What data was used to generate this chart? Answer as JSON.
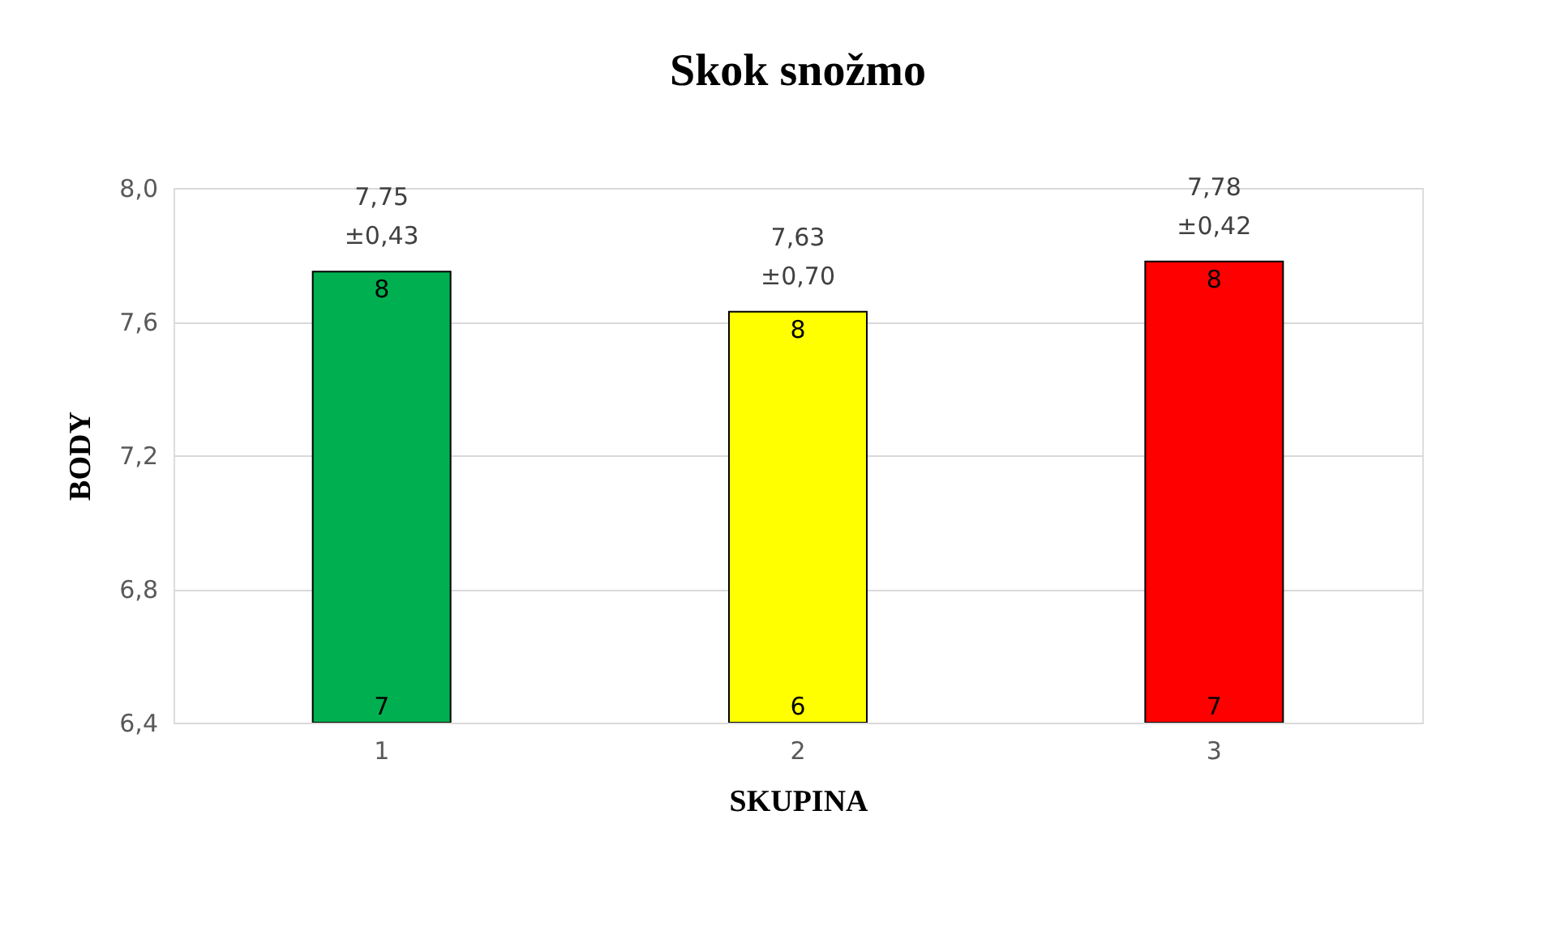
{
  "chart_data": {
    "type": "bar",
    "title": "Skok snožmo",
    "xlabel": "SKUPINA",
    "ylabel": "BODY",
    "categories": [
      "1",
      "2",
      "3"
    ],
    "values": [
      7.75,
      7.63,
      7.78
    ],
    "colors": [
      "#00b050",
      "#ffff00",
      "#ff0000"
    ],
    "value_labels": [
      "7,75\n±0,43",
      "7,63\n±0,70",
      "7,78\n±0,42"
    ],
    "ylim": [
      6.4,
      8.0
    ],
    "yticks": [
      {
        "value": 6.4,
        "label": "6,4"
      },
      {
        "value": 6.8,
        "label": "6,8"
      },
      {
        "value": 7.2,
        "label": "7,2"
      },
      {
        "value": 7.6,
        "label": "7,6"
      },
      {
        "value": 8.0,
        "label": "8,0"
      }
    ],
    "grid": "y",
    "legend": false,
    "annotations": [
      {
        "text": "8",
        "x": "1",
        "y": 7.75
      },
      {
        "text": "7",
        "x": "1",
        "y": 6.4
      },
      {
        "text": "8",
        "x": "2",
        "y": 7.63
      },
      {
        "text": "6",
        "x": "2",
        "y": 6.4
      },
      {
        "text": "8",
        "x": "3",
        "y": 7.78
      },
      {
        "text": "7",
        "x": "3",
        "y": 6.4
      }
    ]
  }
}
